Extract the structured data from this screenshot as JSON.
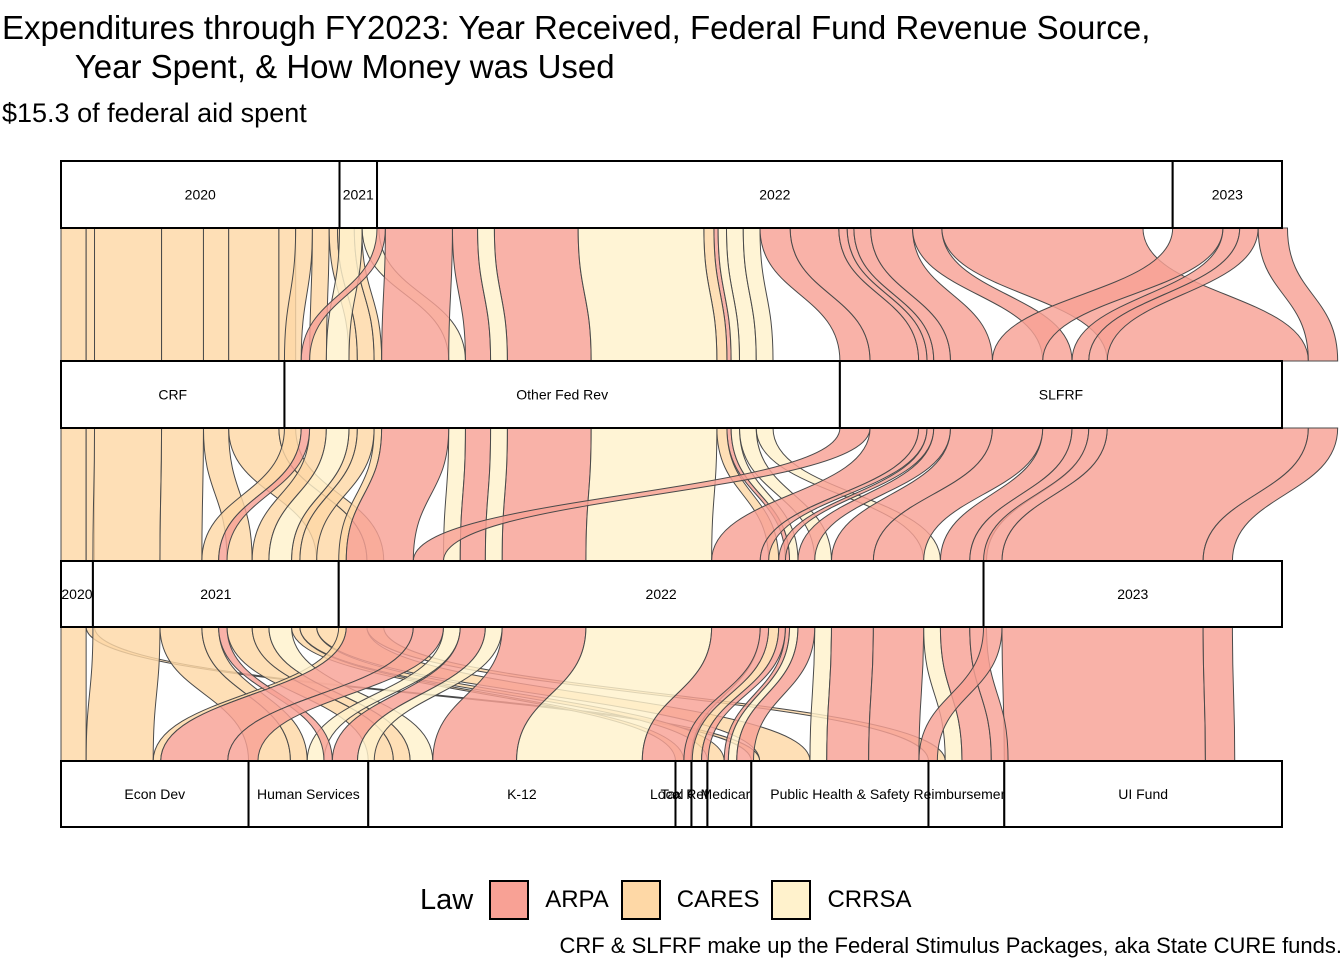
{
  "title": "Expenditures through FY2023: Year Received, Federal Fund Revenue Source,\n        Year Spent, & How Money was Used",
  "subtitle": "$15.3 of federal aid spent",
  "caption": "CRF & SLFRF make up the Federal Stimulus Packages, aka State CURE funds.",
  "legend": {
    "title": "Law",
    "items": [
      {
        "label": "ARPA",
        "color": "#F8A195"
      },
      {
        "label": "CARES",
        "color": "#FED8A6"
      },
      {
        "label": "CRRSA",
        "color": "#FFF2CC"
      }
    ]
  },
  "chart_data": {
    "type": "alluvial",
    "total_billions": 15.3,
    "axes": [
      {
        "name": "Year Received",
        "strata": [
          {
            "label": "2020",
            "value": 3.49
          },
          {
            "label": "2021",
            "value": 0.47
          },
          {
            "label": "2022",
            "value": 9.97
          },
          {
            "label": "2023",
            "value": 1.37
          }
        ]
      },
      {
        "name": "Federal Fund Revenue Source",
        "strata": [
          {
            "label": "CRF",
            "value": 2.8
          },
          {
            "label": "Other Fed Rev",
            "value": 6.96
          },
          {
            "label": "SLFRF",
            "value": 5.54
          }
        ]
      },
      {
        "name": "Year Spent",
        "strata": [
          {
            "label": "2020",
            "value": 0.4
          },
          {
            "label": "2021",
            "value": 3.08
          },
          {
            "label": "2022",
            "value": 8.08
          },
          {
            "label": "2023",
            "value": 3.74
          }
        ]
      },
      {
        "name": "How Money was Used",
        "strata": [
          {
            "label": "Econ Dev",
            "value": 2.35
          },
          {
            "label": "Human Services",
            "value": 1.5
          },
          {
            "label": "K-12",
            "value": 3.85
          },
          {
            "label": "Local Govt",
            "value": 0.2
          },
          {
            "label": "Tax Refunds",
            "value": 0.2
          },
          {
            "label": "Medicare",
            "value": 0.55
          },
          {
            "label": "Public Health & Safety",
            "value": 2.22
          },
          {
            "label": "Reimbursements",
            "value": 0.95
          },
          {
            "label": "UI Fund",
            "value": 3.48
          }
        ]
      }
    ],
    "flows": [
      {
        "law": "CARES",
        "path": [
          "2020",
          "CRF",
          "2020",
          "Econ Dev"
        ],
        "value": 0.3
      },
      {
        "law": "CARES",
        "path": [
          "2020",
          "CRF",
          "2020",
          "Public Health & Safety"
        ],
        "value": 0.1
      },
      {
        "law": "CARES",
        "path": [
          "2020",
          "CRF",
          "2021",
          "Econ Dev"
        ],
        "value": 0.8
      },
      {
        "law": "CARES",
        "path": [
          "2020",
          "CRF",
          "2021",
          "Human Services"
        ],
        "value": 0.5
      },
      {
        "law": "CARES",
        "path": [
          "2020",
          "CRF",
          "2021",
          "Public Health & Safety"
        ],
        "value": 0.6
      },
      {
        "law": "CARES",
        "path": [
          "2020",
          "CRF",
          "2021",
          "K-12"
        ],
        "value": 0.3
      },
      {
        "law": "CARES",
        "path": [
          "2020",
          "CRF",
          "2021",
          "Reimbursements"
        ],
        "value": 0.2
      },
      {
        "law": "CARES",
        "path": [
          "2020",
          "Other Fed Rev",
          "2021",
          "Human Services"
        ],
        "value": 0.2
      },
      {
        "law": "CARES",
        "path": [
          "2020",
          "Other Fed Rev",
          "2021",
          "K-12"
        ],
        "value": 0.2
      },
      {
        "law": "CARES",
        "path": [
          "2020",
          "Other Fed Rev",
          "2021",
          "Local Govt"
        ],
        "value": 0.1
      },
      {
        "law": "CARES",
        "path": [
          "2020",
          "Other Fed Rev",
          "2021",
          "Medicare"
        ],
        "value": 0.2
      },
      {
        "law": "CARES",
        "path": [
          "2020",
          "Other Fed Rev",
          "2022",
          "Econ Dev"
        ],
        "value": 0.09
      },
      {
        "law": "CRRSA",
        "path": [
          "2021",
          "Other Fed Rev",
          "2021",
          "K-12"
        ],
        "value": 0.27
      },
      {
        "law": "CRRSA",
        "path": [
          "2021",
          "Other Fed Rev",
          "2022",
          "Human Services"
        ],
        "value": 0.2
      },
      {
        "law": "ARPA",
        "path": [
          "2022",
          "Other Fed Rev",
          "2021",
          "Human Services"
        ],
        "value": 0.1
      },
      {
        "law": "ARPA",
        "path": [
          "2022",
          "Other Fed Rev",
          "2022",
          "Econ Dev"
        ],
        "value": 0.8
      },
      {
        "law": "ARPA",
        "path": [
          "2022",
          "Other Fed Rev",
          "2022",
          "Human Services"
        ],
        "value": 0.3
      },
      {
        "law": "ARPA",
        "path": [
          "2022",
          "Other Fed Rev",
          "2022",
          "K-12"
        ],
        "value": 1.0
      },
      {
        "law": "ARPA",
        "path": [
          "2022",
          "Other Fed Rev",
          "2022",
          "Medicare"
        ],
        "value": 0.05
      },
      {
        "law": "CARES",
        "path": [
          "2022",
          "Other Fed Rev",
          "2022",
          "Tax Refunds"
        ],
        "value": 0.12
      },
      {
        "law": "CRRSA",
        "path": [
          "2022",
          "Other Fed Rev",
          "2022",
          "K-12"
        ],
        "value": 1.5
      },
      {
        "law": "CRRSA",
        "path": [
          "2022",
          "Other Fed Rev",
          "2022",
          "Human Services"
        ],
        "value": 0.2
      },
      {
        "law": "CRRSA",
        "path": [
          "2022",
          "Other Fed Rev",
          "2022",
          "Public Health & Safety"
        ],
        "value": 0.2
      },
      {
        "law": "CRRSA",
        "path": [
          "2022",
          "Other Fed Rev",
          "2022",
          "Reimbursements"
        ],
        "value": 0.2
      },
      {
        "law": "CRRSA",
        "path": [
          "2022",
          "Other Fed Rev",
          "2022",
          "Medicare"
        ],
        "value": 0.1
      },
      {
        "law": "ARPA",
        "path": [
          "2022",
          "SLFRF",
          "2022",
          "Econ Dev"
        ],
        "value": 0.36
      },
      {
        "law": "ARPA",
        "path": [
          "2022",
          "SLFRF",
          "2022",
          "K-12"
        ],
        "value": 0.58
      },
      {
        "law": "ARPA",
        "path": [
          "2022",
          "SLFRF",
          "2022",
          "Local Govt"
        ],
        "value": 0.1
      },
      {
        "law": "ARPA",
        "path": [
          "2022",
          "SLFRF",
          "2022",
          "Tax Refunds"
        ],
        "value": 0.08
      },
      {
        "law": "ARPA",
        "path": [
          "2022",
          "SLFRF",
          "2022",
          "Medicare"
        ],
        "value": 0.2
      },
      {
        "law": "ARPA",
        "path": [
          "2022",
          "SLFRF",
          "2022",
          "Public Health & Safety"
        ],
        "value": 0.5
      },
      {
        "law": "ARPA",
        "path": [
          "2022",
          "SLFRF",
          "2022",
          "Reimbursements"
        ],
        "value": 0.35
      },
      {
        "law": "ARPA",
        "path": [
          "2022",
          "SLFRF",
          "2023",
          "UI Fund"
        ],
        "value": 2.4
      },
      {
        "law": "ARPA",
        "path": [
          "2023",
          "SLFRF",
          "2022",
          "Public Health & Safety"
        ],
        "value": 0.6
      },
      {
        "law": "ARPA",
        "path": [
          "2023",
          "SLFRF",
          "2022",
          "Reimbursements"
        ],
        "value": 0.2
      },
      {
        "law": "ARPA",
        "path": [
          "2023",
          "SLFRF",
          "2023",
          "Public Health & Safety"
        ],
        "value": 0.22
      },
      {
        "law": "ARPA",
        "path": [
          "2023",
          "SLFRF",
          "2023",
          "Reimbursements"
        ],
        "value": 0.0
      },
      {
        "law": "ARPA",
        "path": [
          "2023",
          "SLFRF",
          "2023",
          "UI Fund"
        ],
        "value": 0.35
      }
    ]
  }
}
